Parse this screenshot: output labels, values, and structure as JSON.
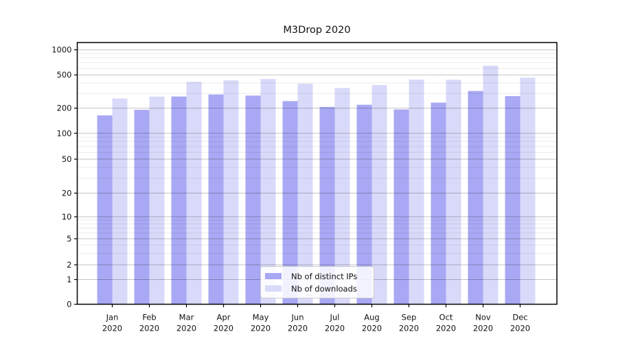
{
  "title": "M3Drop 2020",
  "chart_data": {
    "type": "bar",
    "title": "M3Drop 2020",
    "xlabel": "",
    "ylabel": "",
    "yscale": "symlog",
    "ylim": [
      0,
      1220
    ],
    "grid": true,
    "legend_position": "bottom-center",
    "year_label": "2020",
    "categories": [
      "Jan",
      "Feb",
      "Mar",
      "Apr",
      "May",
      "Jun",
      "Jul",
      "Aug",
      "Sep",
      "Oct",
      "Nov",
      "Dec"
    ],
    "yticks": [
      0,
      1,
      2,
      5,
      10,
      20,
      50,
      100,
      200,
      500,
      1000
    ],
    "minor_gridlines": [
      3,
      4,
      6,
      7,
      8,
      9,
      30,
      40,
      60,
      70,
      80,
      90,
      300,
      400,
      600,
      700,
      800,
      900
    ],
    "series": [
      {
        "name": "Nb of distinct IPs",
        "color": "#a8a8f4",
        "values": [
          164,
          191,
          276,
          292,
          283,
          243,
          207,
          220,
          193,
          233,
          321,
          279
        ]
      },
      {
        "name": "Nb of downloads",
        "color": "#d9d9fa",
        "values": [
          261,
          275,
          413,
          430,
          446,
          393,
          349,
          378,
          440,
          437,
          646,
          464
        ]
      }
    ]
  }
}
